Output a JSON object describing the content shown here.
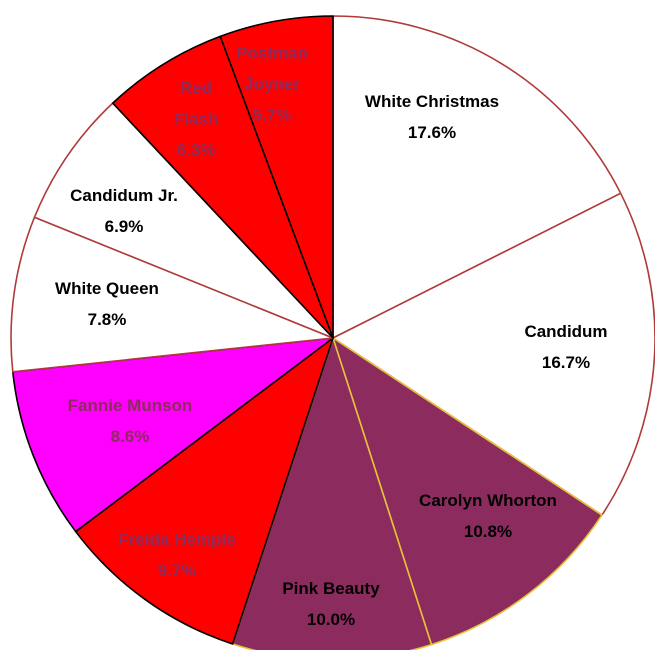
{
  "chart_data": {
    "type": "pie",
    "title": "",
    "labels": [
      "White Christmas",
      "Candidum",
      "Carolyn Whorton",
      "Pink Beauty",
      "Freida Hemple",
      "Fannie Munson",
      "White Queen",
      "Candidum Jr.",
      "Red Flash",
      "Postman Joyner"
    ],
    "values": [
      17.6,
      16.7,
      10.8,
      10.0,
      9.7,
      8.6,
      7.8,
      6.9,
      6.3,
      5.7
    ],
    "value_labels": [
      "17.6%",
      "16.7%",
      "10.8%",
      "10.0%",
      "9.7%",
      "8.6%",
      "7.8%",
      "6.9%",
      "6.3%",
      "5.7%"
    ],
    "colors": [
      "#ffffff",
      "#ffffff",
      "#8c2c5e",
      "#8c2c5e",
      "#ff0000",
      "#ff00ff",
      "#ffffff",
      "#ffffff",
      "#ff0000",
      "#ff0000"
    ],
    "edge_colors": [
      "#b03a3a",
      "#b03a3a",
      "#e6c23a",
      "#e6c23a",
      "#000000",
      "#000000",
      "#b03a3a",
      "#b03a3a",
      "#000000",
      "#000000"
    ],
    "text_colors": [
      "#000000",
      "#000000",
      "#000000",
      "#000000",
      "#8c2c5e",
      "#8c2c5e",
      "#000000",
      "#000000",
      "#8c2c5e",
      "#8c2c5e"
    ],
    "start_angle_deg": 0,
    "direction": "clockwise",
    "legend": "none"
  }
}
